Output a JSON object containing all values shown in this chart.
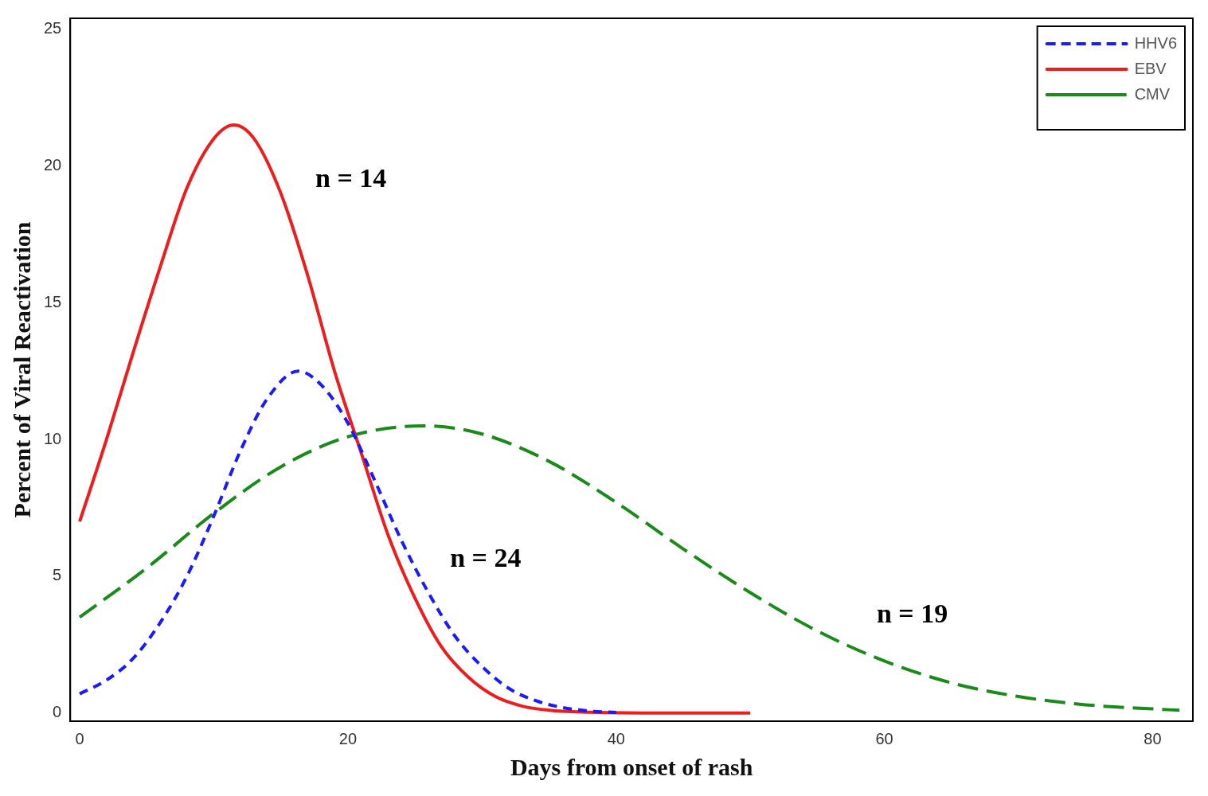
{
  "chart_data": {
    "type": "line",
    "xlabel": "Days from onset of rash",
    "ylabel": "Percent of Viral Reactivation",
    "xlim": [
      -0.7,
      83
    ],
    "ylim": [
      -0.3,
      25.4
    ],
    "xticks": [
      0,
      20,
      40,
      60,
      80
    ],
    "yticks": [
      0,
      5,
      10,
      15,
      20,
      25
    ],
    "grid": false,
    "legend": "top right",
    "marker": "none",
    "series": [
      {
        "name": "HHV6",
        "color": "#1a1aff",
        "line_style": "dotted",
        "x": [
          0,
          2,
          4,
          6,
          8,
          10,
          12,
          14,
          16.3,
          18,
          20,
          22,
          24,
          26,
          28,
          30,
          32,
          34,
          36,
          38,
          40
        ],
        "values": [
          0.7,
          1.2,
          2,
          3.3,
          5,
          7.2,
          9.6,
          11.5,
          12.5,
          12,
          10.6,
          8.5,
          6.3,
          4.4,
          2.8,
          1.7,
          0.9,
          0.45,
          0.2,
          0.07,
          0.02
        ]
      },
      {
        "name": "EBV",
        "color": "#ee1c1c",
        "line_style": "solid",
        "x": [
          0,
          2,
          4,
          6,
          8,
          10,
          11.5,
          13,
          15,
          17,
          19,
          21,
          23,
          25,
          27,
          29,
          31,
          33,
          35,
          38,
          42,
          50
        ],
        "values": [
          7,
          10,
          13.2,
          16.3,
          19.2,
          21,
          21.5,
          21,
          19,
          16,
          12.5,
          9.5,
          6.5,
          4.2,
          2.4,
          1.3,
          0.6,
          0.25,
          0.1,
          0.03,
          0,
          0
        ]
      },
      {
        "name": "CMV",
        "color": "#1a8a1a",
        "line_style": "dashed",
        "x": [
          0,
          5,
          10,
          15,
          20,
          25.7,
          30,
          35,
          40,
          45,
          50,
          55,
          60,
          65,
          70,
          75,
          80,
          82
        ],
        "values": [
          3.5,
          5.3,
          7.3,
          9,
          10.1,
          10.5,
          10.2,
          9.2,
          7.7,
          6,
          4.4,
          3,
          1.9,
          1.1,
          0.6,
          0.3,
          0.15,
          0.1
        ]
      }
    ],
    "annotations": [
      "n = 14",
      "n = 24",
      "n = 19"
    ]
  }
}
